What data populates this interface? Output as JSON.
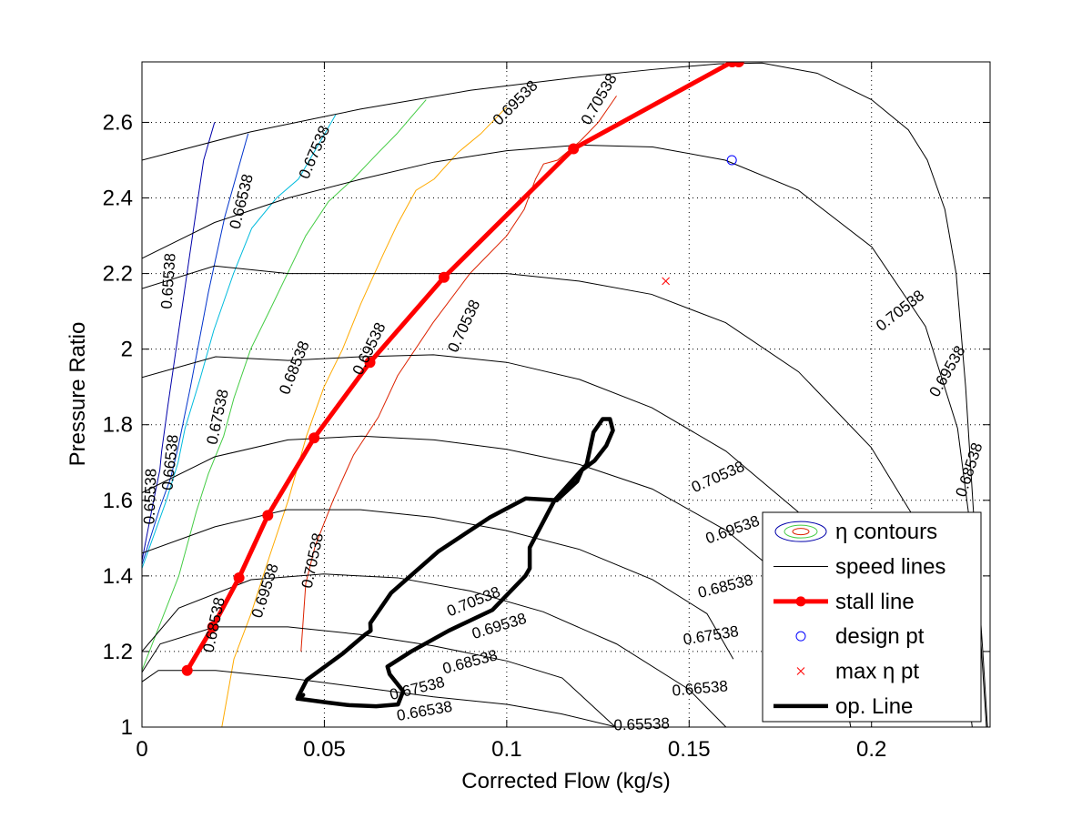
{
  "chart_data": {
    "type": "line",
    "title": "",
    "xlabel": "Corrected Flow (kg/s)",
    "ylabel": "Pressure Ratio",
    "xlim": [
      0,
      0.2325
    ],
    "ylim": [
      1,
      2.76
    ],
    "grid": true,
    "legend_position": "bottom-right",
    "x_ticks": [
      {
        "value": 0,
        "label": "0"
      },
      {
        "value": 0.05,
        "label": "0.05"
      },
      {
        "value": 0.1,
        "label": "0.1"
      },
      {
        "value": 0.15,
        "label": "0.15"
      },
      {
        "value": 0.2,
        "label": "0.2"
      }
    ],
    "y_ticks": [
      {
        "value": 1,
        "label": "1"
      },
      {
        "value": 1.2,
        "label": "1.2"
      },
      {
        "value": 1.4,
        "label": "1.4"
      },
      {
        "value": 1.6,
        "label": "1.6"
      },
      {
        "value": 1.8,
        "label": "1.8"
      },
      {
        "value": 2,
        "label": "2"
      },
      {
        "value": 2.2,
        "label": "2.2"
      },
      {
        "value": 2.4,
        "label": "2.4"
      },
      {
        "value": 2.6,
        "label": "2.6"
      }
    ],
    "legend": [
      {
        "key": "contours",
        "label": "η contours"
      },
      {
        "key": "speed",
        "label": "speed lines"
      },
      {
        "key": "stall",
        "label": "stall line"
      },
      {
        "key": "design",
        "label": "design pt"
      },
      {
        "key": "max",
        "label": "max η pt"
      },
      {
        "key": "op",
        "label": "op. Line"
      }
    ],
    "speed_lines": [
      {
        "x": [
          0.0,
          0.0045,
          0.0202,
          0.0401,
          0.0601,
          0.0799,
          0.1002,
          0.115,
          0.1301
        ],
        "y": [
          1.12,
          1.15,
          1.15,
          1.13,
          1.105,
          1.08,
          1.06,
          1.035,
          1.0
        ]
      },
      {
        "x": [
          0.0,
          0.005,
          0.0201,
          0.04,
          0.0598,
          0.0799,
          0.1,
          0.1152,
          0.1298
        ],
        "y": [
          1.145,
          1.22,
          1.265,
          1.265,
          1.245,
          1.215,
          1.175,
          1.13,
          1.0
        ]
      },
      {
        "x": [
          0.0,
          0.0101,
          0.0299,
          0.0498,
          0.0701,
          0.0901,
          0.11,
          0.1301,
          0.1499,
          0.1601
        ],
        "y": [
          1.2,
          1.315,
          1.39,
          1.405,
          1.395,
          1.36,
          1.305,
          1.22,
          1.1,
          1.0
        ]
      },
      {
        "x": [
          0.0,
          0.02,
          0.0397,
          0.0599,
          0.0799,
          0.0998,
          0.12,
          0.14,
          0.1549,
          0.1621
        ],
        "y": [
          1.46,
          1.53,
          1.575,
          1.575,
          1.555,
          1.52,
          1.47,
          1.39,
          1.3,
          1.18
        ]
      },
      {
        "x": [
          0.0,
          0.0199,
          0.04,
          0.0602,
          0.0801,
          0.1,
          0.1199,
          0.1399,
          0.1602,
          0.1801,
          0.19,
          0.1943
        ],
        "y": [
          1.62,
          1.715,
          1.76,
          1.77,
          1.76,
          1.735,
          1.695,
          1.63,
          1.52,
          1.36,
          1.22,
          1.0
        ]
      },
      {
        "x": [
          0.0,
          0.0202,
          0.0401,
          0.0602,
          0.0799,
          0.1,
          0.1199,
          0.1398,
          0.1601,
          0.1798,
          0.1998,
          0.2099,
          0.2151
        ],
        "y": [
          1.925,
          1.98,
          1.97,
          1.98,
          1.985,
          1.965,
          1.92,
          1.845,
          1.73,
          1.57,
          1.345,
          1.19,
          1.05
        ]
      },
      {
        "x": [
          0.0,
          0.0199,
          0.0401,
          0.0601,
          0.0799,
          0.1,
          0.1198,
          0.1397,
          0.16,
          0.18,
          0.1999,
          0.2151,
          0.2243,
          0.2276
        ],
        "y": [
          2.16,
          2.22,
          2.2,
          2.2,
          2.2,
          2.2,
          2.18,
          2.145,
          2.07,
          1.94,
          1.74,
          1.5,
          1.25,
          1.0
        ]
      },
      {
        "x": [
          0.0,
          0.0199,
          0.0401,
          0.0602,
          0.0801,
          0.1,
          0.1199,
          0.14,
          0.1599,
          0.18,
          0.2001,
          0.2148,
          0.2236,
          0.2288,
          0.2315
        ],
        "y": [
          2.24,
          2.335,
          2.4,
          2.45,
          2.495,
          2.525,
          2.54,
          2.535,
          2.5,
          2.42,
          2.27,
          2.06,
          1.79,
          1.4,
          1.0
        ]
      },
      {
        "x": [
          0.0,
          0.0298,
          0.0599,
          0.0902,
          0.1201,
          0.1401,
          0.1581,
          0.17,
          0.1851,
          0.2,
          0.2101,
          0.2153,
          0.2201,
          0.2232,
          0.2258,
          0.2284,
          0.2305,
          0.2318
        ],
        "y": [
          2.5,
          2.575,
          2.635,
          2.685,
          2.72,
          2.74,
          2.755,
          2.757,
          2.73,
          2.66,
          2.58,
          2.5,
          2.37,
          2.2,
          1.9,
          1.5,
          1.2,
          1.0
        ]
      }
    ],
    "efficiency_contours": [
      {
        "level": 0.65538,
        "color": "#0000aa",
        "x": [
          0.0,
          0.0032,
          0.0049,
          0.0054,
          0.0071,
          0.0101,
          0.0131,
          0.0169,
          0.0199
        ],
        "y": [
          1.44,
          1.6,
          1.68,
          1.73,
          1.85,
          2.05,
          2.25,
          2.5,
          2.6
        ]
      },
      {
        "level": 0.66538,
        "color": "#0033cc",
        "x": [
          0.0,
          0.0049,
          0.0079,
          0.0099,
          0.0133,
          0.0182,
          0.0227,
          0.0291
        ],
        "y": [
          1.43,
          1.58,
          1.66,
          1.74,
          1.9,
          2.15,
          2.35,
          2.57
        ]
      },
      {
        "level": 0.67538,
        "color": "#00bbdd",
        "x": [
          0.0,
          0.0067,
          0.0099,
          0.0118,
          0.0159,
          0.0197,
          0.0251,
          0.0301,
          0.0369,
          0.0429,
          0.0489,
          0.0531
        ],
        "y": [
          1.42,
          1.6,
          1.7,
          1.79,
          1.92,
          2.05,
          2.2,
          2.32,
          2.4,
          2.45,
          2.55,
          2.62
        ]
      },
      {
        "level": 0.68538,
        "color": "#44cc44",
        "x": [
          0.0,
          0.0101,
          0.0149,
          0.0182,
          0.0224,
          0.0252,
          0.0298,
          0.0349,
          0.0399,
          0.0449,
          0.0511,
          0.0579,
          0.0648,
          0.0699,
          0.0779
        ],
        "y": [
          1.15,
          1.4,
          1.57,
          1.67,
          1.77,
          1.87,
          2.0,
          2.1,
          2.2,
          2.3,
          2.39,
          2.45,
          2.52,
          2.57,
          2.66
        ]
      },
      {
        "level": 0.69538,
        "color": "#ffaa00",
        "x": [
          0.0219,
          0.0252,
          0.0299,
          0.0349,
          0.0401,
          0.0451,
          0.0499,
          0.055,
          0.06,
          0.0661,
          0.07,
          0.0751,
          0.0801,
          0.0866,
          0.0929,
          0.0999
        ],
        "y": [
          1.0,
          1.18,
          1.3,
          1.45,
          1.6,
          1.77,
          1.9,
          2.0,
          2.12,
          2.25,
          2.33,
          2.42,
          2.45,
          2.52,
          2.57,
          2.64
        ]
      },
      {
        "level": 0.70538,
        "color": "#dd2200",
        "x": [
          0.0436,
          0.0449,
          0.0475,
          0.0524,
          0.058,
          0.0648,
          0.0701,
          0.0798,
          0.0899,
          0.1,
          0.1048,
          0.1079,
          0.1101,
          0.1139,
          0.1201,
          0.1251,
          0.1301
        ],
        "y": [
          1.2,
          1.38,
          1.48,
          1.6,
          1.72,
          1.82,
          1.93,
          2.07,
          2.2,
          2.3,
          2.37,
          2.45,
          2.49,
          2.5,
          2.55,
          2.6,
          2.67
        ]
      }
    ],
    "contour_labels": [
      {
        "text": "0.65538",
        "x": 0.0075,
        "y": 2.18,
        "angle": -86
      },
      {
        "text": "0.66538",
        "x": 0.0275,
        "y": 2.39,
        "angle": -76
      },
      {
        "text": "0.67538",
        "x": 0.0475,
        "y": 2.52,
        "angle": -67
      },
      {
        "text": "0.69538",
        "x": 0.1025,
        "y": 2.65,
        "angle": -45
      },
      {
        "text": "0.70538",
        "x": 0.1255,
        "y": 2.66,
        "angle": -60
      },
      {
        "text": "0.68538",
        "x": 0.042,
        "y": 1.95,
        "angle": -68
      },
      {
        "text": "0.69538",
        "x": 0.0625,
        "y": 2.0,
        "angle": -64
      },
      {
        "text": "0.70538",
        "x": 0.0885,
        "y": 2.06,
        "angle": -65
      },
      {
        "text": "0.66538",
        "x": 0.008,
        "y": 1.7,
        "angle": -84
      },
      {
        "text": "0.67538",
        "x": 0.021,
        "y": 1.82,
        "angle": -78
      },
      {
        "text": "0.65538",
        "x": 0.0025,
        "y": 1.61,
        "angle": -88
      },
      {
        "text": "0.70538",
        "x": 0.047,
        "y": 1.44,
        "angle": -78
      },
      {
        "text": "0.68538",
        "x": 0.02,
        "y": 1.27,
        "angle": -78
      },
      {
        "text": "0.69538",
        "x": 0.034,
        "y": 1.36,
        "angle": -72
      },
      {
        "text": "0.70538",
        "x": 0.208,
        "y": 2.1,
        "angle": -38
      },
      {
        "text": "0.69538",
        "x": 0.221,
        "y": 1.94,
        "angle": -60
      },
      {
        "text": "0.68538",
        "x": 0.227,
        "y": 1.68,
        "angle": -72
      },
      {
        "text": "0.70538",
        "x": 0.158,
        "y": 1.66,
        "angle": -24
      },
      {
        "text": "0.69538",
        "x": 0.162,
        "y": 1.52,
        "angle": -20
      },
      {
        "text": "0.68538",
        "x": 0.16,
        "y": 1.37,
        "angle": -14
      },
      {
        "text": "0.67538",
        "x": 0.156,
        "y": 1.24,
        "angle": -9
      },
      {
        "text": "0.66538",
        "x": 0.153,
        "y": 1.1,
        "angle": -5
      },
      {
        "text": "0.65538",
        "x": 0.137,
        "y": 1.005,
        "angle": -2
      },
      {
        "text": "0.70538",
        "x": 0.091,
        "y": 1.33,
        "angle": -22
      },
      {
        "text": "0.69538",
        "x": 0.098,
        "y": 1.265,
        "angle": -17
      },
      {
        "text": "0.68538",
        "x": 0.09,
        "y": 1.17,
        "angle": -15
      },
      {
        "text": "0.67538",
        "x": 0.0755,
        "y": 1.1,
        "angle": -14
      },
      {
        "text": "0.66538",
        "x": 0.0775,
        "y": 1.04,
        "angle": -10
      }
    ],
    "stall_line": {
      "x": [
        0.0124,
        0.0194,
        0.0266,
        0.0345,
        0.0472,
        0.0625,
        0.0828,
        0.1183,
        0.1618,
        0.1636
      ],
      "y": [
        1.15,
        1.265,
        1.395,
        1.56,
        1.765,
        1.965,
        2.19,
        2.53,
        2.76,
        2.76
      ]
    },
    "design_point": {
      "x": 0.1617,
      "y": 2.5
    },
    "max_eff_point": {
      "x": 0.1436,
      "y": 2.18
    },
    "op_line": {
      "x": [
        0.0426,
        0.0442,
        0.0428,
        0.0452,
        0.0551,
        0.0612,
        0.0627,
        0.0626,
        0.0683,
        0.0813,
        0.0954,
        0.1052,
        0.1137,
        0.1193,
        0.1206,
        0.1241,
        0.1273,
        0.1291,
        0.1283,
        0.1263,
        0.1238,
        0.1219,
        0.1131,
        0.1063,
        0.1063,
        0.1051,
        0.0961,
        0.0841,
        0.0738,
        0.0673,
        0.0679,
        0.0716,
        0.0702,
        0.0642,
        0.0568,
        0.0508,
        0.0431,
        0.0426
      ],
      "y": [
        1.075,
        1.085,
        1.08,
        1.125,
        1.195,
        1.245,
        1.255,
        1.275,
        1.355,
        1.465,
        1.555,
        1.605,
        1.6,
        1.65,
        1.68,
        1.705,
        1.745,
        1.785,
        1.815,
        1.815,
        1.78,
        1.695,
        1.6,
        1.475,
        1.42,
        1.4,
        1.31,
        1.255,
        1.2,
        1.16,
        1.14,
        1.095,
        1.06,
        1.055,
        1.058,
        1.065,
        1.075,
        1.075
      ]
    }
  }
}
